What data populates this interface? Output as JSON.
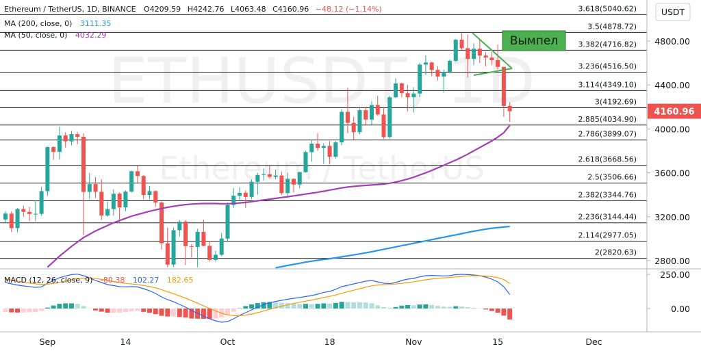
{
  "chart_data": [
    {
      "type": "candlestick",
      "title": "Ethereum / TetherUS, 1D, BINANCE",
      "header_values": [
        "O4209.59",
        "H4242.76",
        "L4063.48",
        "C4160.96",
        "−48.12 (−1.14%)"
      ],
      "currency": "USDT",
      "watermark": [
        "ETHUSDT, 1D",
        "Ethereum / TetherUS"
      ],
      "annotation": "Вымпел",
      "categories": [
        null,
        null,
        null,
        null,
        null,
        null,
        null,
        "Sep",
        null,
        null,
        null,
        null,
        null,
        null,
        null,
        null,
        null,
        null,
        null,
        null,
        "14",
        null,
        null,
        null,
        null,
        null,
        null,
        null,
        null,
        null,
        null,
        null,
        null,
        null,
        null,
        null,
        null,
        "Oct",
        null,
        null,
        null,
        null,
        null,
        null,
        null,
        null,
        null,
        null,
        null,
        null,
        null,
        null,
        null,
        null,
        "18",
        null,
        null,
        null,
        null,
        null,
        null,
        null,
        null,
        null,
        null,
        null,
        null,
        null,
        "Nov",
        null,
        null,
        null,
        null,
        null,
        null,
        null,
        null,
        null,
        null,
        null,
        null,
        null,
        "15",
        null,
        null,
        null,
        null,
        null,
        null,
        null,
        null,
        null,
        null,
        null,
        null,
        null,
        null,
        null,
        "Dec"
      ],
      "open": [
        3175,
        3228,
        3096,
        3270,
        3244,
        3225,
        3226,
        3433,
        3834,
        3790,
        3940,
        3887,
        3952,
        3928,
        3426,
        3497,
        3427,
        3211,
        3270,
        3410,
        3285,
        3429,
        3614,
        3571,
        3398,
        3433,
        3329,
        2958,
        2764,
        3077,
        3155,
        2931,
        2925,
        3062,
        2934,
        2807,
        2853,
        3001,
        3307,
        3391,
        3418,
        3380,
        3518,
        3580,
        3587,
        3563,
        3575,
        3415,
        3545,
        3493,
        3606,
        3788,
        3865,
        3827,
        3845,
        3746,
        3877,
        4155,
        4055,
        3970,
        4170,
        4085,
        4217,
        4131,
        3926,
        4288,
        4414,
        4325,
        4288,
        4322,
        4586,
        4605,
        4537,
        4477,
        4519,
        4620,
        4812,
        4735,
        4637,
        4730,
        4668,
        4649,
        4626,
        4565,
        4209.59,
        null,
        null,
        null,
        null,
        null,
        null,
        null,
        null,
        null,
        null,
        null,
        null,
        null,
        null
      ],
      "high": [
        3250,
        3249,
        3280,
        3300,
        3290,
        3350,
        3470,
        3840,
        3840,
        4020,
        3970,
        3980,
        3970,
        3960,
        3600,
        3560,
        3540,
        3340,
        3450,
        3420,
        3440,
        3620,
        3670,
        3580,
        3480,
        3440,
        3340,
        3100,
        3100,
        3170,
        3170,
        2950,
        3090,
        3170,
        2980,
        2890,
        3050,
        3330,
        3460,
        3470,
        3440,
        3540,
        3600,
        3640,
        3670,
        3630,
        3610,
        3600,
        3550,
        3610,
        3800,
        3900,
        3960,
        3870,
        3890,
        3890,
        4180,
        4375,
        4110,
        4200,
        4200,
        4250,
        4300,
        4200,
        4300,
        4460,
        4420,
        4400,
        4380,
        4600,
        4670,
        4610,
        4570,
        4540,
        4630,
        4820,
        4870,
        4860,
        4780,
        4810,
        4700,
        4700,
        4770,
        4565,
        4242.76,
        null,
        null,
        null,
        null,
        null,
        null,
        null,
        null,
        null,
        null,
        null,
        null,
        null,
        null
      ],
      "low": [
        3150,
        3060,
        3060,
        3200,
        3160,
        3160,
        3210,
        3390,
        3720,
        3720,
        3830,
        3850,
        3860,
        3030,
        3360,
        3370,
        3170,
        3200,
        3210,
        3150,
        3250,
        3420,
        3510,
        3360,
        3360,
        3290,
        2900,
        2740,
        2740,
        3020,
        2760,
        2820,
        2740,
        2930,
        2790,
        2790,
        2840,
        2970,
        3280,
        3340,
        3280,
        3360,
        3400,
        3530,
        3550,
        3540,
        3400,
        3380,
        3420,
        3460,
        3600,
        3700,
        3800,
        3680,
        3680,
        3730,
        3850,
        3960,
        3900,
        3950,
        4040,
        4040,
        4120,
        3910,
        3910,
        4280,
        4290,
        4160,
        4150,
        4290,
        4490,
        4480,
        4440,
        4330,
        4510,
        4610,
        4720,
        4470,
        4580,
        4600,
        4570,
        4580,
        4540,
        4110,
        4063.48,
        null,
        null,
        null,
        null,
        null,
        null,
        null,
        null,
        null,
        null,
        null,
        null,
        null,
        null
      ],
      "close": [
        3228,
        3096,
        3270,
        3244,
        3225,
        3226,
        3433,
        3834,
        3790,
        3940,
        3887,
        3952,
        3928,
        3426,
        3497,
        3427,
        3211,
        3270,
        3410,
        3285,
        3429,
        3614,
        3571,
        3398,
        3433,
        3329,
        2958,
        2764,
        3077,
        3155,
        2931,
        2925,
        3062,
        2934,
        2807,
        2853,
        3001,
        3307,
        3391,
        3418,
        3380,
        3518,
        3580,
        3587,
        3563,
        3575,
        3415,
        3545,
        3493,
        3606,
        3788,
        3865,
        3827,
        3845,
        3746,
        3877,
        4155,
        4055,
        3970,
        4170,
        4085,
        4217,
        4131,
        3926,
        4288,
        4414,
        4325,
        4288,
        4322,
        4586,
        4605,
        4537,
        4477,
        4519,
        4620,
        4812,
        4735,
        4637,
        4730,
        4668,
        4649,
        4626,
        4565,
        4209.59,
        4160.96,
        null,
        null,
        null,
        null,
        null,
        null,
        null,
        null,
        null,
        null,
        null,
        null,
        null,
        null
      ],
      "up_color": "#26a69a",
      "down_color": "#ef5350",
      "ylim": [
        2725,
        5174
      ],
      "yticks": [
        {
          "value": 4800,
          "label": "4800.00"
        },
        {
          "value": 4400,
          "label": "4400.00"
        },
        {
          "value": 4000,
          "label": "4000.00"
        },
        {
          "value": 3600,
          "label": "3600.00"
        },
        {
          "value": 3200,
          "label": "3200.00"
        },
        {
          "value": 2800,
          "label": "2800.00"
        }
      ],
      "levels": [
        {
          "value": 5040.62,
          "label": "3.618(5040.62)"
        },
        {
          "value": 4878.72,
          "label": "3.5(4878.72)"
        },
        {
          "value": 4716.82,
          "label": "3.382(4716.82)"
        },
        {
          "value": 4516.5,
          "label": "3.236(4516.50)"
        },
        {
          "value": 4349.1,
          "label": "3.114(4349.10)"
        },
        {
          "value": 4192.69,
          "label": "3(4192.69)"
        },
        {
          "value": 4034.9,
          "label": "2.885(4034.90)"
        },
        {
          "value": 3899.07,
          "label": "2.786(3899.07)"
        },
        {
          "value": 3668.56,
          "label": "2.618(3668.56)"
        },
        {
          "value": 3506.66,
          "label": "2.5(3506.66)"
        },
        {
          "value": 3344.76,
          "label": "2.382(3344.76)"
        },
        {
          "value": 3144.44,
          "label": "2.236(3144.44)"
        },
        {
          "value": 2977.05,
          "label": "2.114(2977.05)"
        },
        {
          "value": 2820.63,
          "label": "2(2820.63)"
        }
      ],
      "level_color": "#222222",
      "series": [
        {
          "name": "MA (200, close, 0)",
          "color": "#2196f3",
          "values": [
            null,
            null,
            null,
            null,
            null,
            null,
            null,
            null,
            null,
            null,
            null,
            null,
            null,
            null,
            null,
            null,
            null,
            null,
            null,
            null,
            null,
            null,
            null,
            null,
            null,
            null,
            null,
            null,
            null,
            null,
            null,
            null,
            null,
            null,
            null,
            null,
            null,
            null,
            null,
            null,
            null,
            null,
            null,
            null,
            null,
            2735,
            2745,
            2756,
            2766,
            2776,
            2786,
            2795,
            2803,
            2811,
            2818,
            2826,
            2834,
            2843,
            2852,
            2861,
            2871,
            2881,
            2892,
            2903,
            2914,
            2925,
            2936,
            2947,
            2958,
            2969,
            2980,
            2991,
            3002,
            3013,
            3024,
            3035,
            3046,
            3057,
            3068,
            3078,
            3087,
            3095,
            3101,
            3106,
            3111.35,
            null,
            null,
            null,
            null,
            null,
            null,
            null,
            null,
            null,
            null,
            null,
            null,
            null,
            null
          ]
        },
        {
          "name": "MA (50, close, 0)",
          "color": "#a23fb4",
          "values": [
            null,
            null,
            null,
            null,
            null,
            null,
            null,
            2740,
            2790,
            2840,
            2885,
            2930,
            2970,
            3010,
            3040,
            3070,
            3095,
            3120,
            3145,
            3165,
            3185,
            3205,
            3220,
            3235,
            3250,
            3262,
            3275,
            3285,
            3295,
            3303,
            3310,
            3315,
            3318,
            3320,
            3320,
            3320,
            3318,
            3318,
            3320,
            3325,
            3330,
            3337,
            3345,
            3352,
            3360,
            3367,
            3375,
            3382,
            3390,
            3398,
            3406,
            3414,
            3422,
            3432,
            3442,
            3452,
            3462,
            3470,
            3476,
            3481,
            3485,
            3489,
            3493,
            3498,
            3505,
            3515,
            3528,
            3543,
            3560,
            3580,
            3600,
            3622,
            3645,
            3668,
            3692,
            3716,
            3742,
            3770,
            3800,
            3830,
            3860,
            3890,
            3925,
            3965,
            4032.29,
            null,
            null,
            null,
            null,
            null,
            null,
            null,
            null,
            null,
            null,
            null,
            null,
            null,
            null
          ]
        }
      ]
    },
    {
      "type": "macd",
      "title": "MACD (12, 26, close, 9)",
      "ylim": [
        -170,
        290
      ],
      "yticks": [
        {
          "value": 250,
          "label": "250.00"
        },
        {
          "value": 0,
          "label": "0.00"
        }
      ],
      "histogram": [
        -25,
        -28,
        -29,
        -29,
        -27,
        -26,
        -18,
        7,
        22,
        34,
        38,
        38,
        34,
        18,
        2,
        -14,
        -23,
        -30,
        -30,
        -30,
        -26,
        -19,
        -17,
        -24,
        -31,
        -41,
        -53,
        -58,
        -58,
        -62,
        -66,
        -73,
        -74,
        -75,
        -76,
        -73,
        -66,
        -49,
        -23,
        2,
        18,
        30,
        40,
        46,
        48,
        46,
        43,
        41,
        38,
        34,
        34,
        33,
        34,
        38,
        36,
        41,
        49,
        47,
        46,
        45,
        44,
        39,
        23,
        10,
        6,
        11,
        21,
        25,
        24,
        29,
        30,
        26,
        19,
        14,
        13,
        17,
        15,
        10,
        6,
        1,
        -7,
        -18,
        -30,
        -52,
        -80.38,
        null,
        null,
        null,
        null,
        null,
        null,
        null,
        null,
        null,
        null,
        null,
        null,
        null,
        null
      ],
      "histogram_colors": [
        "#26a69a",
        "#b2dfdb",
        "#ffcdd2",
        "#ef5350"
      ],
      "series": [
        {
          "color": "#2962ff",
          "values": [
            190,
            180,
            172,
            165,
            160,
            155,
            158,
            185,
            205,
            225,
            238,
            248,
            252,
            240,
            225,
            205,
            190,
            175,
            168,
            160,
            158,
            160,
            158,
            145,
            130,
            110,
            85,
            65,
            50,
            30,
            10,
            -15,
            -35,
            -55,
            -75,
            -90,
            -100,
            -95,
            -75,
            -50,
            -30,
            -10,
            10,
            28,
            42,
            52,
            60,
            68,
            75,
            80,
            88,
            95,
            105,
            118,
            125,
            140,
            160,
            170,
            180,
            190,
            200,
            205,
            195,
            185,
            182,
            190,
            205,
            215,
            220,
            232,
            240,
            242,
            240,
            238,
            240,
            248,
            250,
            248,
            245,
            240,
            230,
            215,
            195,
            160,
            102.27,
            null,
            null,
            null,
            null,
            null,
            null,
            null,
            null,
            null,
            null,
            null,
            null,
            null,
            null
          ]
        },
        {
          "color": "#ff9800",
          "values": [
            215,
            208,
            201,
            194,
            187,
            181,
            176,
            178,
            183,
            191,
            200,
            210,
            218,
            222,
            223,
            219,
            213,
            205,
            198,
            190,
            184,
            179,
            175,
            169,
            161,
            151,
            138,
            123,
            108,
            92,
            76,
            58,
            39,
            20,
            1,
            -17,
            -34,
            -46,
            -52,
            -52,
            -48,
            -40,
            -30,
            -18,
            -6,
            6,
            17,
            27,
            37,
            46,
            54,
            62,
            71,
            80,
            89,
            99,
            111,
            123,
            134,
            145,
            156,
            166,
            172,
            175,
            176,
            179,
            184,
            190,
            196,
            203,
            210,
            216,
            221,
            224,
            227,
            231,
            235,
            238,
            239,
            239,
            237,
            233,
            225,
            212,
            182.65,
            null,
            null,
            null,
            null,
            null,
            null,
            null,
            null,
            null,
            null,
            null,
            null,
            null,
            null
          ]
        }
      ]
    }
  ]
}
